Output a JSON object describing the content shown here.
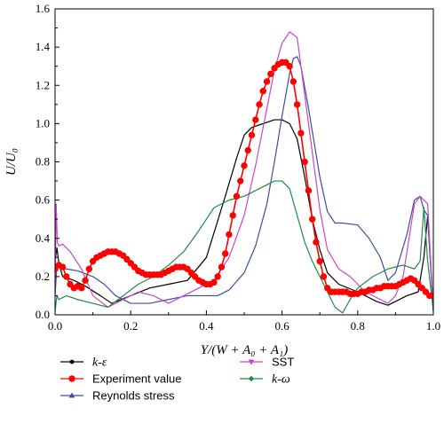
{
  "chart_data": {
    "type": "line",
    "xlabel": "Y/(W + A₀ + A₁)",
    "ylabel": "U/U₀",
    "xlim": [
      0.0,
      1.0
    ],
    "ylim": [
      0.0,
      1.6
    ],
    "xticks": [
      "0.0",
      "0.2",
      "0.4",
      "0.6",
      "0.8",
      "1.0"
    ],
    "yticks": [
      "0.0",
      "0.2",
      "0.4",
      "0.6",
      "0.8",
      "1.0",
      "1.2",
      "1.4",
      "1.6"
    ],
    "grid": false,
    "legend_position": "bottom",
    "series": [
      {
        "name": "k-ε",
        "color": "#000000",
        "marker": "none",
        "x": [
          0.0,
          0.005,
          0.01,
          0.02,
          0.05,
          0.08,
          0.12,
          0.15,
          0.2,
          0.25,
          0.3,
          0.35,
          0.4,
          0.45,
          0.48,
          0.5,
          0.52,
          0.55,
          0.58,
          0.6,
          0.62,
          0.64,
          0.66,
          0.68,
          0.7,
          0.72,
          0.75,
          0.8,
          0.85,
          0.88,
          0.9,
          0.93,
          0.96,
          0.975,
          0.985,
          1.0
        ],
        "y": [
          0.28,
          0.35,
          0.27,
          0.2,
          0.18,
          0.15,
          0.1,
          0.06,
          0.1,
          0.14,
          0.16,
          0.18,
          0.3,
          0.62,
          0.82,
          0.94,
          0.98,
          1.0,
          1.02,
          1.02,
          1.0,
          0.92,
          0.72,
          0.5,
          0.34,
          0.22,
          0.16,
          0.12,
          0.07,
          0.05,
          0.07,
          0.1,
          0.12,
          0.3,
          0.52,
          0.02
        ]
      },
      {
        "name": "Experiment value",
        "color": "#ff0000",
        "marker": "circle",
        "x": [
          0.0,
          0.01,
          0.02,
          0.03,
          0.04,
          0.05,
          0.06,
          0.07,
          0.08,
          0.09,
          0.1,
          0.11,
          0.12,
          0.13,
          0.14,
          0.15,
          0.16,
          0.17,
          0.18,
          0.19,
          0.2,
          0.21,
          0.22,
          0.23,
          0.24,
          0.25,
          0.26,
          0.27,
          0.28,
          0.29,
          0.3,
          0.31,
          0.32,
          0.33,
          0.34,
          0.35,
          0.36,
          0.37,
          0.38,
          0.39,
          0.4,
          0.41,
          0.42,
          0.43,
          0.44,
          0.45,
          0.46,
          0.47,
          0.48,
          0.49,
          0.5,
          0.51,
          0.52,
          0.53,
          0.54,
          0.55,
          0.56,
          0.57,
          0.58,
          0.59,
          0.6,
          0.61,
          0.62,
          0.63,
          0.64,
          0.65,
          0.66,
          0.67,
          0.68,
          0.69,
          0.7,
          0.71,
          0.72,
          0.73,
          0.74,
          0.75,
          0.76,
          0.77,
          0.78,
          0.79,
          0.8,
          0.81,
          0.82,
          0.83,
          0.84,
          0.85,
          0.86,
          0.87,
          0.88,
          0.89,
          0.9,
          0.91,
          0.92,
          0.93,
          0.94,
          0.95,
          0.96,
          0.97,
          0.98,
          0.99,
          1.0
        ],
        "y": [
          0.24,
          0.26,
          0.25,
          0.2,
          0.16,
          0.14,
          0.15,
          0.14,
          0.18,
          0.24,
          0.28,
          0.3,
          0.31,
          0.32,
          0.33,
          0.33,
          0.33,
          0.32,
          0.31,
          0.29,
          0.27,
          0.25,
          0.23,
          0.22,
          0.21,
          0.21,
          0.21,
          0.21,
          0.21,
          0.22,
          0.23,
          0.24,
          0.25,
          0.25,
          0.25,
          0.24,
          0.22,
          0.2,
          0.18,
          0.17,
          0.16,
          0.16,
          0.17,
          0.2,
          0.25,
          0.32,
          0.42,
          0.52,
          0.62,
          0.7,
          0.78,
          0.86,
          0.94,
          1.02,
          1.1,
          1.17,
          1.22,
          1.26,
          1.29,
          1.31,
          1.32,
          1.32,
          1.3,
          1.22,
          1.1,
          0.95,
          0.8,
          0.65,
          0.5,
          0.38,
          0.28,
          0.2,
          0.14,
          0.12,
          0.12,
          0.12,
          0.12,
          0.12,
          0.11,
          0.11,
          0.11,
          0.12,
          0.12,
          0.13,
          0.13,
          0.14,
          0.14,
          0.15,
          0.15,
          0.15,
          0.15,
          0.16,
          0.17,
          0.18,
          0.19,
          0.18,
          0.16,
          0.14,
          0.12,
          0.1,
          0.1
        ]
      },
      {
        "name": "Reynolds stress",
        "color": "#3b4fa0",
        "marker": "triangle",
        "x": [
          0.0,
          0.005,
          0.01,
          0.03,
          0.06,
          0.1,
          0.13,
          0.16,
          0.2,
          0.25,
          0.3,
          0.35,
          0.4,
          0.43,
          0.46,
          0.5,
          0.53,
          0.56,
          0.58,
          0.6,
          0.62,
          0.63,
          0.64,
          0.65,
          0.67,
          0.7,
          0.72,
          0.74,
          0.76,
          0.8,
          0.83,
          0.86,
          0.88,
          0.9,
          0.93,
          0.95,
          0.965,
          0.975,
          0.985,
          1.0
        ],
        "y": [
          0.1,
          0.26,
          0.25,
          0.24,
          0.23,
          0.2,
          0.16,
          0.1,
          0.06,
          0.06,
          0.08,
          0.1,
          0.1,
          0.1,
          0.13,
          0.22,
          0.36,
          0.58,
          0.8,
          1.04,
          1.26,
          1.34,
          1.35,
          1.3,
          1.08,
          0.72,
          0.54,
          0.48,
          0.48,
          0.47,
          0.4,
          0.3,
          0.18,
          0.22,
          0.42,
          0.6,
          0.62,
          0.55,
          0.52,
          0.02
        ]
      },
      {
        "name": "SST",
        "color": "#cc44cc",
        "marker": "down-triangle",
        "x": [
          0.0,
          0.003,
          0.006,
          0.01,
          0.02,
          0.04,
          0.07,
          0.1,
          0.14,
          0.18,
          0.22,
          0.26,
          0.3,
          0.34,
          0.38,
          0.42,
          0.46,
          0.5,
          0.53,
          0.56,
          0.58,
          0.6,
          0.62,
          0.64,
          0.65,
          0.67,
          0.7,
          0.72,
          0.75,
          0.78,
          0.82,
          0.86,
          0.88,
          0.9,
          0.92,
          0.95,
          0.965,
          0.975,
          0.985,
          1.0
        ],
        "y": [
          0.1,
          0.58,
          0.38,
          0.36,
          0.37,
          0.33,
          0.24,
          0.1,
          0.04,
          0.08,
          0.12,
          0.1,
          0.06,
          0.1,
          0.14,
          0.18,
          0.3,
          0.52,
          0.78,
          1.08,
          1.28,
          1.42,
          1.48,
          1.45,
          1.3,
          1.0,
          0.55,
          0.34,
          0.24,
          0.2,
          0.12,
          0.08,
          0.06,
          0.1,
          0.2,
          0.58,
          0.62,
          0.6,
          0.58,
          0.02
        ]
      },
      {
        "name": "k-ω",
        "color": "#1e8a4a",
        "marker": "diamond",
        "x": [
          0.0,
          0.005,
          0.01,
          0.03,
          0.06,
          0.1,
          0.14,
          0.18,
          0.22,
          0.26,
          0.3,
          0.34,
          0.38,
          0.42,
          0.46,
          0.5,
          0.54,
          0.58,
          0.6,
          0.62,
          0.64,
          0.66,
          0.68,
          0.7,
          0.72,
          0.74,
          0.76,
          0.78,
          0.8,
          0.84,
          0.88,
          0.92,
          0.95,
          0.965,
          0.975,
          0.985,
          1.0
        ],
        "y": [
          0.02,
          0.1,
          0.08,
          0.1,
          0.08,
          0.06,
          0.04,
          0.1,
          0.16,
          0.2,
          0.26,
          0.33,
          0.44,
          0.56,
          0.6,
          0.62,
          0.66,
          0.7,
          0.7,
          0.66,
          0.52,
          0.38,
          0.28,
          0.2,
          0.12,
          0.04,
          0.01,
          0.08,
          0.14,
          0.2,
          0.24,
          0.26,
          0.24,
          0.28,
          0.56,
          0.28,
          0.02
        ]
      }
    ]
  }
}
